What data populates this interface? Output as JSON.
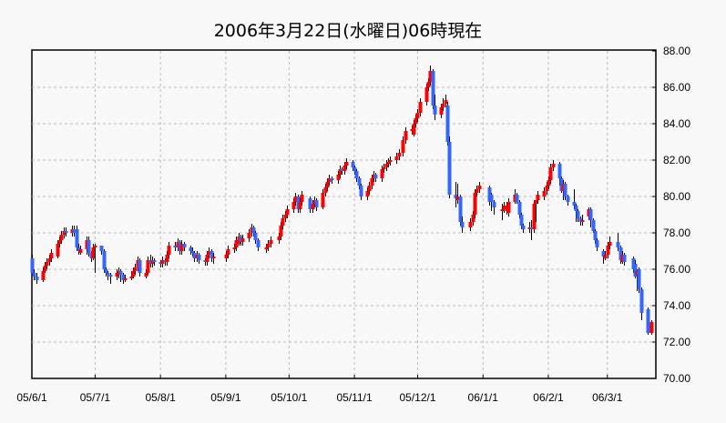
{
  "chart_data": {
    "type": "candlestick",
    "title": "2006年3月22日(水曜日)06時現在",
    "ylim": [
      70,
      88
    ],
    "y_ticks": [
      "70.00",
      "72.00",
      "74.00",
      "76.00",
      "78.00",
      "80.00",
      "82.00",
      "84.00",
      "86.00",
      "88.00"
    ],
    "x_ticks": [
      {
        "date": "2005-06-01",
        "label": "05/6/1"
      },
      {
        "date": "2005-07-01",
        "label": "05/7/1"
      },
      {
        "date": "2005-08-01",
        "label": "05/8/1"
      },
      {
        "date": "2005-09-01",
        "label": "05/9/1"
      },
      {
        "date": "2005-10-01",
        "label": "05/10/1"
      },
      {
        "date": "2005-11-01",
        "label": "05/11/1"
      },
      {
        "date": "2005-12-01",
        "label": "05/12/1"
      },
      {
        "date": "2006-01-01",
        "label": "06/1/1"
      },
      {
        "date": "2006-02-01",
        "label": "06/2/1"
      },
      {
        "date": "2006-03-01",
        "label": "06/3/1"
      }
    ],
    "x_range": [
      "2005-06-01",
      "2006-03-24"
    ],
    "grid": true,
    "colors": {
      "up": "#ff0000",
      "down": "#3366ff",
      "wick": "#000000",
      "grid": "#bbbbbb"
    },
    "candles_columns": [
      "date",
      "open",
      "high",
      "low",
      "close"
    ],
    "candles": [
      [
        "2005-06-01",
        76.6,
        76.8,
        75.6,
        75.8
      ],
      [
        "2005-06-02",
        75.8,
        76.0,
        75.4,
        75.6
      ],
      [
        "2005-06-03",
        75.6,
        75.8,
        75.2,
        75.4
      ],
      [
        "2005-06-06",
        75.4,
        76.1,
        75.3,
        75.9
      ],
      [
        "2005-06-07",
        75.9,
        76.4,
        75.8,
        76.2
      ],
      [
        "2005-06-08",
        76.2,
        76.6,
        76.0,
        76.4
      ],
      [
        "2005-06-09",
        76.4,
        76.8,
        76.2,
        76.6
      ],
      [
        "2005-06-10",
        76.6,
        77.1,
        76.4,
        76.9
      ],
      [
        "2005-06-13",
        76.7,
        77.6,
        76.6,
        77.4
      ],
      [
        "2005-06-14",
        77.4,
        77.8,
        77.2,
        77.6
      ],
      [
        "2005-06-15",
        77.6,
        78.1,
        77.4,
        77.9
      ],
      [
        "2005-06-16",
        77.9,
        78.3,
        77.7,
        78.1
      ],
      [
        "2005-06-17",
        78.1,
        78.3,
        77.8,
        78.0
      ],
      [
        "2005-06-20",
        78.0,
        78.4,
        77.8,
        78.2
      ],
      [
        "2005-06-21",
        78.2,
        78.4,
        77.8,
        78.0
      ],
      [
        "2005-06-22",
        78.2,
        78.4,
        77.0,
        77.2
      ],
      [
        "2005-06-23",
        77.2,
        77.4,
        76.8,
        77.0
      ],
      [
        "2005-06-24",
        76.9,
        77.3,
        76.8,
        77.1
      ],
      [
        "2005-06-27",
        77.1,
        77.8,
        76.8,
        77.6
      ],
      [
        "2005-06-28",
        77.6,
        77.8,
        76.7,
        76.9
      ],
      [
        "2005-06-29",
        76.9,
        77.0,
        76.4,
        76.6
      ],
      [
        "2005-06-30",
        76.6,
        77.4,
        76.5,
        77.2
      ],
      [
        "2005-07-01",
        77.2,
        77.4,
        75.8,
        77.3
      ],
      [
        "2005-07-04",
        77.3,
        77.3,
        76.8,
        77.0
      ],
      [
        "2005-07-05",
        77.0,
        77.1,
        75.8,
        76.0
      ],
      [
        "2005-07-06",
        76.0,
        76.1,
        75.6,
        75.8
      ],
      [
        "2005-07-07",
        75.8,
        75.9,
        75.4,
        75.7
      ],
      [
        "2005-07-08",
        75.7,
        75.8,
        75.2,
        75.6
      ],
      [
        "2005-07-11",
        75.6,
        76.0,
        75.4,
        75.8
      ],
      [
        "2005-07-12",
        75.7,
        76.1,
        75.5,
        75.9
      ],
      [
        "2005-07-13",
        75.9,
        76.0,
        75.3,
        75.7
      ],
      [
        "2005-07-14",
        75.7,
        75.8,
        75.2,
        75.4
      ],
      [
        "2005-07-15",
        75.4,
        75.7,
        75.3,
        75.5
      ],
      [
        "2005-07-18",
        75.5,
        75.9,
        75.4,
        75.6
      ],
      [
        "2005-07-19",
        75.6,
        76.1,
        75.5,
        75.9
      ],
      [
        "2005-07-20",
        75.9,
        76.3,
        75.7,
        76.1
      ],
      [
        "2005-07-21",
        76.1,
        76.7,
        75.9,
        76.5
      ],
      [
        "2005-07-22",
        76.5,
        76.6,
        75.6,
        75.8
      ],
      [
        "2005-07-25",
        75.6,
        76.0,
        75.5,
        75.8
      ],
      [
        "2005-07-26",
        75.8,
        76.7,
        75.7,
        76.5
      ],
      [
        "2005-07-27",
        76.5,
        76.8,
        76.1,
        76.3
      ],
      [
        "2005-07-28",
        76.3,
        76.7,
        76.1,
        76.5
      ],
      [
        "2005-07-29",
        76.5,
        76.6,
        76.2,
        76.4
      ],
      [
        "2005-08-01",
        76.4,
        76.5,
        76.1,
        76.3
      ],
      [
        "2005-08-02",
        76.3,
        76.7,
        76.1,
        76.5
      ],
      [
        "2005-08-03",
        76.5,
        76.6,
        76.2,
        76.4
      ],
      [
        "2005-08-04",
        76.4,
        77.0,
        76.2,
        76.8
      ],
      [
        "2005-08-05",
        76.8,
        77.5,
        76.6,
        77.3
      ],
      [
        "2005-08-08",
        77.3,
        77.5,
        77.0,
        77.2
      ],
      [
        "2005-08-09",
        77.2,
        77.7,
        77.0,
        77.5
      ],
      [
        "2005-08-10",
        77.5,
        77.6,
        76.8,
        77.0
      ],
      [
        "2005-08-11",
        77.0,
        77.6,
        76.8,
        77.4
      ],
      [
        "2005-08-12",
        77.4,
        77.5,
        77.0,
        77.2
      ],
      [
        "2005-08-15",
        77.2,
        77.3,
        76.8,
        77.0
      ],
      [
        "2005-08-16",
        77.0,
        77.2,
        76.7,
        76.9
      ],
      [
        "2005-08-17",
        76.9,
        77.0,
        76.4,
        76.6
      ],
      [
        "2005-08-18",
        76.6,
        77.0,
        76.4,
        76.8
      ],
      [
        "2005-08-19",
        76.8,
        76.9,
        76.3,
        76.5
      ],
      [
        "2005-08-22",
        76.5,
        76.6,
        76.2,
        76.4
      ],
      [
        "2005-08-23",
        76.4,
        77.0,
        76.2,
        76.8
      ],
      [
        "2005-08-24",
        76.8,
        77.2,
        76.6,
        77.0
      ],
      [
        "2005-08-25",
        77.0,
        77.1,
        76.4,
        76.6
      ],
      [
        "2005-08-26",
        76.6,
        76.9,
        76.3,
        76.7
      ],
      [
        "2005-09-01",
        76.6,
        77.0,
        76.4,
        76.8
      ],
      [
        "2005-09-02",
        76.8,
        77.3,
        76.6,
        77.1
      ],
      [
        "2005-09-05",
        77.1,
        77.4,
        76.9,
        77.2
      ],
      [
        "2005-09-06",
        77.2,
        77.8,
        77.0,
        77.6
      ],
      [
        "2005-09-07",
        77.4,
        78.0,
        77.3,
        77.8
      ],
      [
        "2005-09-08",
        77.8,
        77.9,
        77.3,
        77.5
      ],
      [
        "2005-09-09",
        77.5,
        77.9,
        77.3,
        77.7
      ],
      [
        "2005-09-12",
        77.7,
        78.2,
        77.5,
        78.0
      ],
      [
        "2005-09-13",
        78.0,
        78.5,
        77.8,
        78.3
      ],
      [
        "2005-09-14",
        78.3,
        78.4,
        77.8,
        78.0
      ],
      [
        "2005-09-15",
        78.0,
        78.1,
        77.4,
        77.6
      ],
      [
        "2005-09-16",
        77.6,
        77.7,
        77.0,
        77.2
      ],
      [
        "2005-09-20",
        77.1,
        77.4,
        76.9,
        77.2
      ],
      [
        "2005-09-21",
        77.2,
        77.6,
        77.0,
        77.4
      ],
      [
        "2005-09-22",
        77.4,
        77.8,
        77.2,
        77.6
      ],
      [
        "2005-09-26",
        77.6,
        78.0,
        77.4,
        77.8
      ],
      [
        "2005-09-27",
        77.8,
        78.6,
        77.6,
        78.4
      ],
      [
        "2005-09-28",
        78.4,
        79.0,
        78.2,
        78.8
      ],
      [
        "2005-09-29",
        78.8,
        79.2,
        78.6,
        79.0
      ],
      [
        "2005-09-30",
        79.0,
        79.5,
        78.8,
        79.3
      ],
      [
        "2005-10-03",
        79.3,
        79.9,
        79.1,
        79.7
      ],
      [
        "2005-10-04",
        79.7,
        80.2,
        79.5,
        80.0
      ],
      [
        "2005-10-05",
        80.0,
        80.1,
        79.1,
        79.3
      ],
      [
        "2005-10-06",
        79.3,
        79.9,
        79.1,
        79.7
      ],
      [
        "2005-10-07",
        79.7,
        80.3,
        79.5,
        80.1
      ],
      [
        "2005-10-11",
        79.9,
        80.0,
        79.1,
        79.3
      ],
      [
        "2005-10-12",
        79.3,
        79.8,
        79.1,
        79.6
      ],
      [
        "2005-10-13",
        79.6,
        80.0,
        79.4,
        79.8
      ],
      [
        "2005-10-14",
        79.8,
        79.9,
        79.2,
        79.4
      ],
      [
        "2005-10-17",
        79.4,
        80.4,
        79.3,
        80.2
      ],
      [
        "2005-10-18",
        80.2,
        80.7,
        80.0,
        80.5
      ],
      [
        "2005-10-19",
        80.5,
        81.0,
        80.3,
        80.8
      ],
      [
        "2005-10-20",
        80.8,
        81.2,
        80.6,
        81.0
      ],
      [
        "2005-10-21",
        81.0,
        81.1,
        80.7,
        80.9
      ],
      [
        "2005-10-24",
        80.9,
        81.4,
        80.7,
        81.2
      ],
      [
        "2005-10-25",
        81.2,
        81.7,
        81.0,
        81.5
      ],
      [
        "2005-10-26",
        81.5,
        81.6,
        81.2,
        81.4
      ],
      [
        "2005-10-27",
        81.4,
        81.9,
        81.2,
        81.7
      ],
      [
        "2005-10-28",
        81.7,
        82.1,
        81.5,
        81.9
      ],
      [
        "2005-10-31",
        81.9,
        82.0,
        81.4,
        81.6
      ],
      [
        "2005-11-01",
        81.6,
        81.7,
        81.2,
        81.4
      ],
      [
        "2005-11-02",
        81.4,
        81.5,
        80.8,
        81.0
      ],
      [
        "2005-11-03",
        81.0,
        81.1,
        80.4,
        80.6
      ],
      [
        "2005-11-04",
        80.6,
        80.7,
        79.8,
        80.0
      ],
      [
        "2005-11-07",
        80.0,
        80.5,
        79.8,
        80.3
      ],
      [
        "2005-11-08",
        80.3,
        80.8,
        80.1,
        80.6
      ],
      [
        "2005-11-09",
        80.6,
        81.2,
        80.4,
        81.0
      ],
      [
        "2005-11-10",
        81.0,
        81.4,
        80.8,
        81.2
      ],
      [
        "2005-11-11",
        81.2,
        81.3,
        80.8,
        81.0
      ],
      [
        "2005-11-14",
        81.0,
        81.7,
        80.8,
        81.5
      ],
      [
        "2005-11-15",
        81.5,
        81.8,
        81.3,
        81.6
      ],
      [
        "2005-11-16",
        81.6,
        82.0,
        81.4,
        81.8
      ],
      [
        "2005-11-17",
        81.8,
        82.1,
        81.6,
        81.9
      ],
      [
        "2005-11-18",
        81.9,
        82.2,
        81.7,
        82.0
      ],
      [
        "2005-11-21",
        82.0,
        82.4,
        81.8,
        82.2
      ],
      [
        "2005-11-22",
        82.2,
        82.6,
        82.0,
        82.4
      ],
      [
        "2005-11-24",
        82.4,
        83.3,
        82.2,
        83.1
      ],
      [
        "2005-11-25",
        83.1,
        83.8,
        82.9,
        83.6
      ],
      [
        "2005-11-28",
        83.6,
        83.9,
        83.4,
        83.7
      ],
      [
        "2005-11-29",
        83.4,
        84.2,
        83.3,
        84.0
      ],
      [
        "2005-11-30",
        84.0,
        84.5,
        83.8,
        84.3
      ],
      [
        "2005-12-01",
        84.3,
        84.8,
        84.1,
        84.6
      ],
      [
        "2005-12-02",
        84.6,
        85.4,
        84.4,
        85.2
      ],
      [
        "2005-12-05",
        85.2,
        86.2,
        85.0,
        86.0
      ],
      [
        "2005-12-06",
        86.0,
        86.5,
        85.8,
        86.3
      ],
      [
        "2005-12-07",
        86.3,
        87.2,
        86.1,
        86.9
      ],
      [
        "2005-12-08",
        86.9,
        87.0,
        84.8,
        85.0
      ],
      [
        "2005-12-09",
        85.0,
        85.6,
        84.2,
        84.5
      ],
      [
        "2005-12-12",
        84.5,
        85.1,
        84.3,
        84.9
      ],
      [
        "2005-12-13",
        84.9,
        85.4,
        84.7,
        85.1
      ],
      [
        "2005-12-14",
        85.1,
        85.6,
        84.9,
        85.3
      ],
      [
        "2005-12-15",
        85.0,
        85.2,
        82.8,
        83.0
      ],
      [
        "2005-12-16",
        83.0,
        83.3,
        79.9,
        80.1
      ],
      [
        "2005-12-19",
        80.1,
        80.8,
        79.4,
        79.9
      ],
      [
        "2005-12-20",
        79.8,
        80.7,
        79.6,
        80.0
      ],
      [
        "2005-12-21",
        80.0,
        80.1,
        78.4,
        78.6
      ],
      [
        "2005-12-22",
        78.6,
        78.9,
        78.0,
        78.3
      ],
      [
        "2005-12-26",
        78.3,
        78.8,
        78.1,
        78.6
      ],
      [
        "2005-12-27",
        78.6,
        79.2,
        78.4,
        79.0
      ],
      [
        "2005-12-28",
        79.0,
        80.4,
        78.8,
        80.2
      ],
      [
        "2005-12-29",
        80.2,
        80.6,
        80.0,
        80.4
      ],
      [
        "2005-12-30",
        80.4,
        80.8,
        80.2,
        80.6
      ],
      [
        "2006-01-04",
        80.5,
        80.6,
        79.5,
        79.7
      ],
      [
        "2006-01-05",
        80.1,
        80.2,
        79.2,
        79.7
      ],
      [
        "2006-01-06",
        79.7,
        79.8,
        79.0,
        79.4
      ],
      [
        "2006-01-10",
        79.2,
        79.6,
        78.7,
        79.3
      ],
      [
        "2006-01-11",
        79.3,
        79.7,
        79.1,
        79.5
      ],
      [
        "2006-01-12",
        79.2,
        79.7,
        79.0,
        79.5
      ],
      [
        "2006-01-13",
        79.1,
        79.9,
        78.9,
        79.7
      ],
      [
        "2006-01-16",
        79.7,
        80.4,
        79.6,
        80.1
      ],
      [
        "2006-01-17",
        80.1,
        80.2,
        79.6,
        79.7
      ],
      [
        "2006-01-18",
        79.7,
        79.8,
        78.8,
        79.0
      ],
      [
        "2006-01-19",
        79.0,
        79.1,
        78.2,
        78.4
      ],
      [
        "2006-01-20",
        78.4,
        78.5,
        78.0,
        78.2
      ],
      [
        "2006-01-23",
        78.2,
        78.6,
        78.0,
        78.3
      ],
      [
        "2006-01-24",
        78.3,
        78.7,
        77.6,
        78.2
      ],
      [
        "2006-01-25",
        78.2,
        79.8,
        78.0,
        79.6
      ],
      [
        "2006-01-26",
        79.6,
        79.8,
        78.6,
        79.8
      ],
      [
        "2006-01-27",
        79.8,
        80.3,
        79.6,
        80.1
      ],
      [
        "2006-01-30",
        80.0,
        80.5,
        79.8,
        80.3
      ],
      [
        "2006-01-31",
        80.3,
        80.8,
        80.1,
        80.6
      ],
      [
        "2006-02-01",
        80.6,
        81.1,
        80.4,
        80.9
      ],
      [
        "2006-02-02",
        80.9,
        81.8,
        80.7,
        81.6
      ],
      [
        "2006-02-03",
        81.6,
        82.0,
        81.4,
        81.8
      ],
      [
        "2006-02-06",
        81.8,
        81.9,
        80.6,
        81.0
      ],
      [
        "2006-02-07",
        81.0,
        81.1,
        80.2,
        80.3
      ],
      [
        "2006-02-08",
        80.3,
        80.9,
        79.8,
        80.7
      ],
      [
        "2006-02-09",
        80.7,
        80.8,
        79.8,
        80.0
      ],
      [
        "2006-02-10",
        80.0,
        80.1,
        79.5,
        79.7
      ],
      [
        "2006-02-13",
        79.7,
        80.4,
        79.3,
        79.5
      ],
      [
        "2006-02-14",
        79.5,
        79.6,
        78.6,
        79.2
      ],
      [
        "2006-02-15",
        79.2,
        79.3,
        78.6,
        78.8
      ],
      [
        "2006-02-16",
        78.8,
        78.9,
        78.4,
        78.6
      ],
      [
        "2006-02-17",
        78.6,
        79.0,
        78.4,
        78.7
      ],
      [
        "2006-02-20",
        78.9,
        79.4,
        78.7,
        79.3
      ],
      [
        "2006-02-21",
        79.3,
        79.4,
        78.3,
        78.7
      ],
      [
        "2006-02-22",
        78.7,
        78.8,
        78.0,
        78.1
      ],
      [
        "2006-02-23",
        78.1,
        78.2,
        77.4,
        77.6
      ],
      [
        "2006-02-24",
        77.6,
        77.7,
        77.0,
        77.2
      ],
      [
        "2006-02-27",
        77.0,
        77.1,
        76.3,
        76.7
      ],
      [
        "2006-02-28",
        76.6,
        77.0,
        76.5,
        76.8
      ],
      [
        "2006-03-01",
        76.8,
        77.5,
        76.6,
        77.3
      ],
      [
        "2006-03-02",
        77.3,
        77.8,
        77.1,
        77.5
      ],
      [
        "2006-03-06",
        77.5,
        78.0,
        77.0,
        77.2
      ],
      [
        "2006-03-07",
        77.2,
        77.3,
        76.3,
        76.5
      ],
      [
        "2006-03-08",
        76.4,
        77.0,
        76.3,
        76.8
      ],
      [
        "2006-03-09",
        76.8,
        76.9,
        76.2,
        76.4
      ],
      [
        "2006-03-13",
        76.6,
        76.7,
        75.8,
        76.0
      ],
      [
        "2006-03-14",
        76.3,
        76.5,
        75.5,
        75.6
      ],
      [
        "2006-03-15",
        75.7,
        76.0,
        74.8,
        75.9
      ],
      [
        "2006-03-16",
        76.0,
        76.1,
        74.7,
        74.9
      ],
      [
        "2006-03-17",
        74.9,
        75.0,
        73.2,
        73.6
      ],
      [
        "2006-03-20",
        73.8,
        73.9,
        72.4,
        72.5
      ],
      [
        "2006-03-22",
        72.5,
        73.2,
        72.4,
        73.1
      ]
    ]
  }
}
